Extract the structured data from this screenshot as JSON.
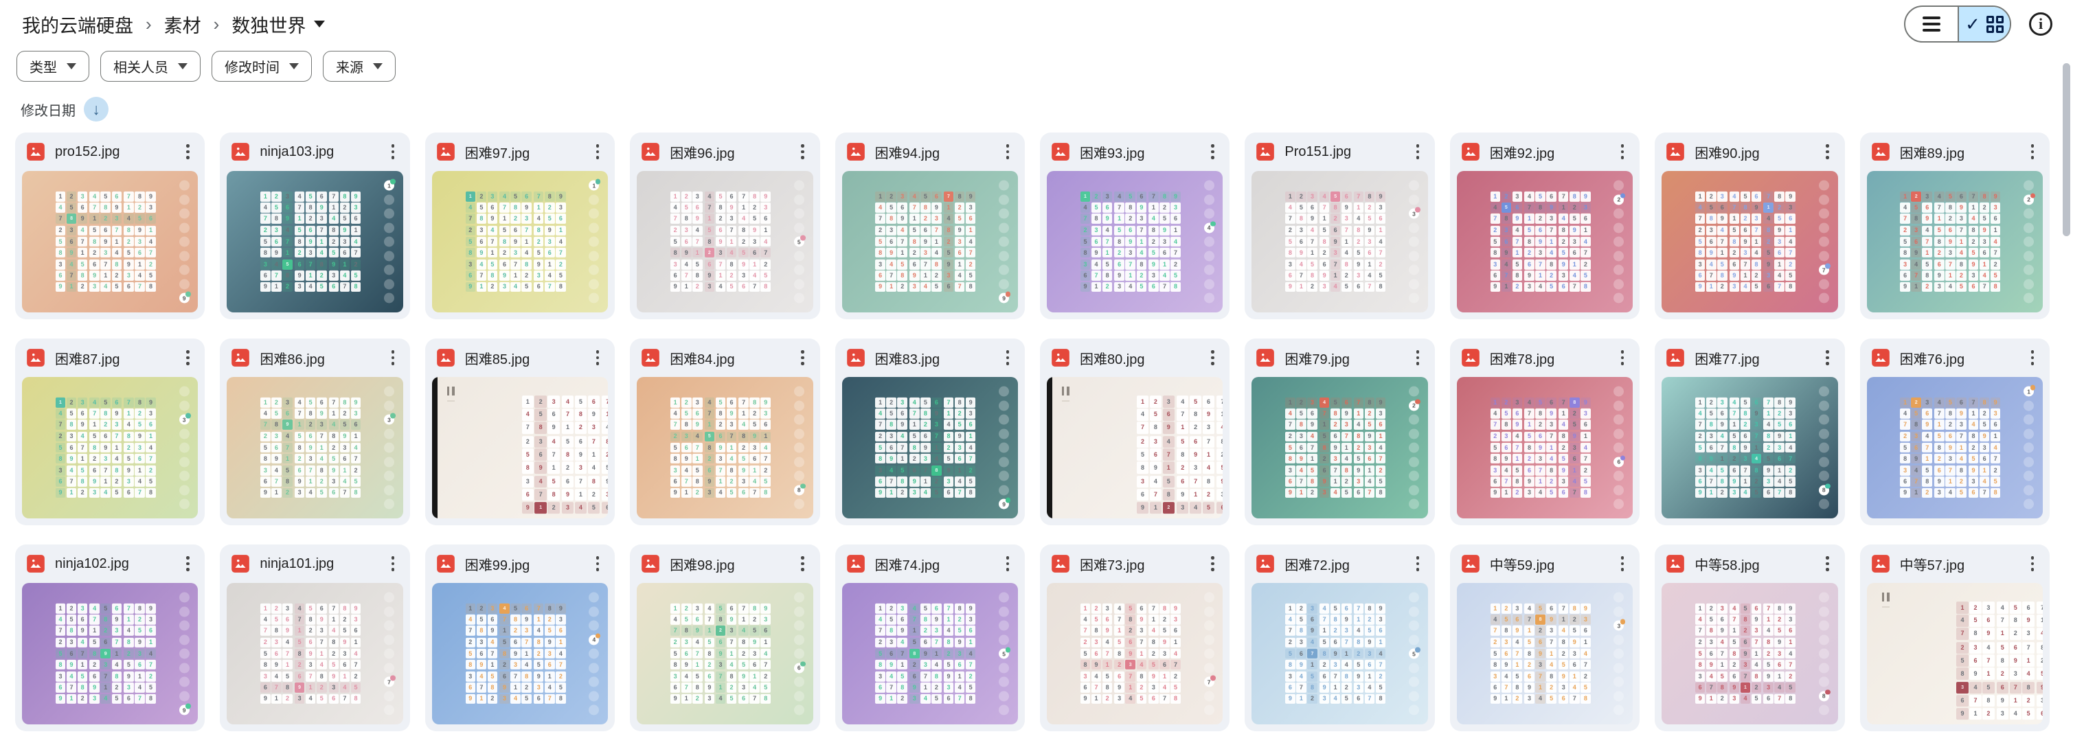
{
  "breadcrumb": {
    "items": [
      {
        "label": "我的云端硬盘"
      },
      {
        "label": "素材"
      }
    ],
    "current": "数独世界",
    "separator": "›"
  },
  "view_toggle": {
    "selected": "grid",
    "selected_bg": "#c2e7ff"
  },
  "filters": [
    {
      "key": "type",
      "label": "类型"
    },
    {
      "key": "people",
      "label": "相关人员"
    },
    {
      "key": "modified",
      "label": "修改时间"
    },
    {
      "key": "source",
      "label": "来源"
    }
  ],
  "sort": {
    "label": "修改日期",
    "direction": "down",
    "arrow": "↓",
    "icon_bg": "#c6e0f4",
    "icon_fg": "#38678f"
  },
  "file_icon_color": "#e5483b",
  "files": [
    {
      "name": "pro152.jpg",
      "thumb": {
        "g1": "#e9c6a6",
        "g2": "#e2a98e",
        "acc": "#6cc6a0",
        "abtn": 8,
        "sel": [
          2,
          1
        ],
        "hcol": 1,
        "hrow": 2
      }
    },
    {
      "name": "ninja103.jpg",
      "thumb": {
        "g1": "#6f9aa6",
        "g2": "#2c4a5a",
        "acc": "#45c290",
        "abtn": 0,
        "sel": [
          6,
          2
        ],
        "hcol": 2,
        "hrow": 6
      }
    },
    {
      "name": "困难97.jpg",
      "thumb": {
        "g1": "#dcd98b",
        "g2": "#e7e6b0",
        "acc": "#57bca4",
        "abtn": 0,
        "sel": [
          0,
          0
        ],
        "hcol": 0,
        "hrow": 0
      }
    },
    {
      "name": "困难96.jpg",
      "thumb": {
        "g1": "#d7d5d4",
        "g2": "#e9e7e6",
        "acc": "#e394a8",
        "abtn": 4,
        "sel": [
          5,
          3
        ],
        "hcol": 3,
        "hrow": 5
      }
    },
    {
      "name": "困难94.jpg",
      "thumb": {
        "g1": "#8bb8ab",
        "g2": "#a9d2c2",
        "acc": "#e07a66",
        "abtn": 8,
        "sel": [
          0,
          6
        ],
        "hcol": 6,
        "hrow": 0
      }
    },
    {
      "name": "困难93.jpg",
      "thumb": {
        "g1": "#ab93d6",
        "g2": "#cdb6e4",
        "acc": "#4fc89b",
        "abtn": 3,
        "sel": [
          0,
          0
        ],
        "hcol": 0,
        "hrow": 0
      }
    },
    {
      "name": "Pro151.jpg",
      "thumb": {
        "g1": "#d9d7d6",
        "g2": "#ebe9e8",
        "acc": "#e38fa5",
        "abtn": 2,
        "sel": [
          0,
          4
        ],
        "hcol": 4,
        "hrow": 0
      }
    },
    {
      "name": "困难92.jpg",
      "thumb": {
        "g1": "#c4697e",
        "g2": "#dc94a6",
        "acc": "#7292dc",
        "abtn": 1,
        "sel": [
          1,
          1
        ],
        "hcol": 1,
        "hrow": 1
      }
    },
    {
      "name": "困难90.jpg",
      "thumb": {
        "g1": "#d98f6d",
        "g2": "#cf7390",
        "acc": "#82a2e2",
        "abtn": 6,
        "sel": [
          1,
          6
        ],
        "hcol": 6,
        "hrow": 1
      }
    },
    {
      "name": "困难89.jpg",
      "thumb": {
        "g1": "#75abb4",
        "g2": "#a3d3b9",
        "acc": "#df6a5e",
        "abtn": 1,
        "sel": [
          0,
          1
        ],
        "hcol": 1,
        "hrow": 0
      }
    },
    {
      "name": "困难87.jpg",
      "thumb": {
        "g1": "#dcd88e",
        "g2": "#cfe2b4",
        "acc": "#57bfa6",
        "abtn": 2,
        "sel": [
          0,
          0
        ],
        "hcol": 0,
        "hrow": 0
      }
    },
    {
      "name": "困难86.jpg",
      "thumb": {
        "g1": "#e7c7a5",
        "g2": "#cfe0c6",
        "acc": "#6cc69c",
        "abtn": 2,
        "sel": [
          2,
          2
        ],
        "hcol": 2,
        "hrow": 2
      }
    },
    {
      "name": "困难85.jpg",
      "thumb": {
        "g1": "#efe9e1",
        "g2": "#f7f2ec",
        "acc": "#a84e58",
        "pause": true,
        "bar": true,
        "sel": [
          8,
          1
        ],
        "hcol": 1,
        "hrow": 8
      }
    },
    {
      "name": "困难84.jpg",
      "thumb": {
        "g1": "#e3b28c",
        "g2": "#eed2b6",
        "acc": "#6cc69c",
        "abtn": 7,
        "sel": [
          3,
          3
        ],
        "hcol": 3,
        "hrow": 3
      }
    },
    {
      "name": "困难83.jpg",
      "thumb": {
        "g1": "#375767",
        "g2": "#5f8d8b",
        "acc": "#3fc08d",
        "abtn": 8,
        "sel": [
          6,
          5
        ],
        "hcol": 5,
        "hrow": 6
      }
    },
    {
      "name": "困难80.jpg",
      "thumb": {
        "g1": "#efe9e3",
        "g2": "#f7f3ee",
        "acc": "#a84e58",
        "pause": true,
        "bar": true,
        "sel": [
          8,
          2
        ],
        "hcol": 2,
        "hrow": 8
      }
    },
    {
      "name": "困难79.jpg",
      "thumb": {
        "g1": "#558f8b",
        "g2": "#83c4aa",
        "acc": "#da6a58",
        "abtn": 1,
        "sel": [
          0,
          3
        ],
        "hcol": 3,
        "hrow": 0
      }
    },
    {
      "name": "困难78.jpg",
      "thumb": {
        "g1": "#c66a76",
        "g2": "#e6a4b2",
        "acc": "#8f82dc",
        "abtn": 5,
        "sel": [
          0,
          7
        ],
        "hcol": 7,
        "hrow": 0
      }
    },
    {
      "name": "困难77.jpg",
      "thumb": {
        "g1": "#9fd2cd",
        "g2": "#2e4a5c",
        "acc": "#45c2a8",
        "abtn": 7,
        "sel": [
          5,
          5
        ],
        "hcol": 5,
        "hrow": 5
      }
    },
    {
      "name": "困难76.jpg",
      "thumb": {
        "g1": "#8ba4da",
        "g2": "#aebfe8",
        "acc": "#e6a158",
        "abtn": 0,
        "sel": [
          0,
          1
        ],
        "hcol": 1,
        "hrow": 0
      }
    },
    {
      "name": "ninja102.jpg",
      "thumb": {
        "g1": "#9a7cc2",
        "g2": "#c6a4d8",
        "acc": "#4fc89b",
        "abtn": 8,
        "sel": [
          4,
          4
        ],
        "hcol": 4,
        "hrow": 4
      }
    },
    {
      "name": "ninja101.jpg",
      "thumb": {
        "g1": "#d9d6d3",
        "g2": "#ece9e6",
        "acc": "#e08fa4",
        "abtn": 6,
        "sel": [
          7,
          3
        ],
        "hcol": 3,
        "hrow": 7
      }
    },
    {
      "name": "困难99.jpg",
      "thumb": {
        "g1": "#82aadb",
        "g2": "#aac6ea",
        "acc": "#e8a254",
        "abtn": 3,
        "sel": [
          0,
          3
        ],
        "hcol": 3,
        "hrow": 0
      }
    },
    {
      "name": "困难98.jpg",
      "thumb": {
        "g1": "#eae2cc",
        "g2": "#cde2c6",
        "acc": "#62c299",
        "abtn": 5,
        "sel": [
          2,
          4
        ],
        "hcol": 4,
        "hrow": 2
      }
    },
    {
      "name": "困难74.jpg",
      "thumb": {
        "g1": "#a489cf",
        "g2": "#c9afe0",
        "acc": "#4fc89b",
        "abtn": 4,
        "sel": [
          4,
          3
        ],
        "hcol": 3,
        "hrow": 4
      }
    },
    {
      "name": "困难73.jpg",
      "thumb": {
        "g1": "#e9e1da",
        "g2": "#f2ebe5",
        "acc": "#df7f8e",
        "abtn": 6,
        "sel": [
          5,
          4
        ],
        "hcol": 4,
        "hrow": 5
      }
    },
    {
      "name": "困难72.jpg",
      "thumb": {
        "g1": "#b9d3e7",
        "g2": "#daeaf3",
        "acc": "#79a6cf",
        "abtn": 4,
        "sel": [
          4,
          2
        ],
        "hcol": 2,
        "hrow": 4
      }
    },
    {
      "name": "中等59.jpg",
      "thumb": {
        "g1": "#c8d6ec",
        "g2": "#e9eef5",
        "acc": "#e8a254",
        "abtn": 2,
        "sel": [
          1,
          4
        ],
        "hcol": 4,
        "hrow": 1
      }
    },
    {
      "name": "中等58.jpg",
      "thumb": {
        "g1": "#e6cfd8",
        "g2": "#d9c9de",
        "acc": "#c25a66",
        "abtn": 7,
        "sel": [
          7,
          4
        ],
        "hcol": 4,
        "hrow": 7
      }
    },
    {
      "name": "中等57.jpg",
      "thumb": {
        "g1": "#f0eae2",
        "g2": "#f8f4ee",
        "acc": "#a84e58",
        "pause": true,
        "sel": [
          6,
          0
        ],
        "hcol": 0,
        "hrow": 6
      }
    }
  ]
}
